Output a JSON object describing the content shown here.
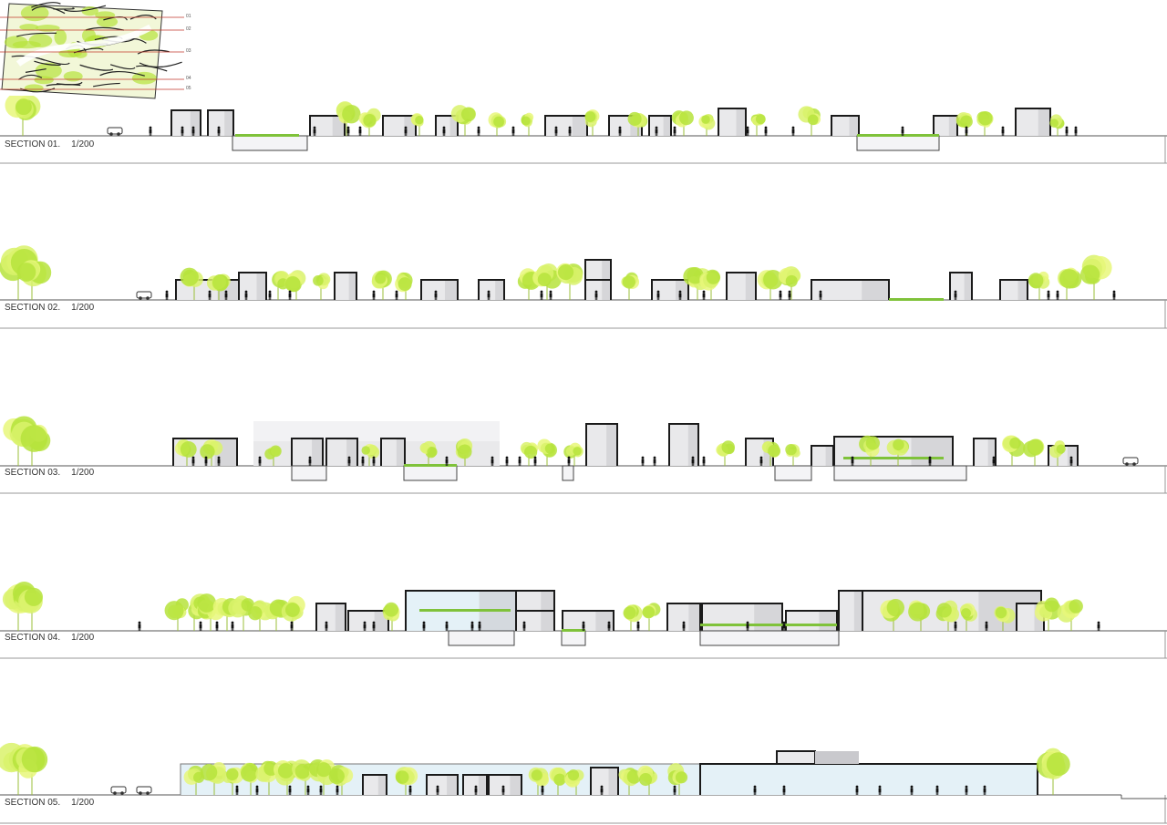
{
  "key_plan": {
    "cut_lines": [
      "01",
      "02",
      "03",
      "04",
      "05"
    ]
  },
  "colors": {
    "tree_light": "#d9f26b",
    "tree_mid": "#b6e33c",
    "tree_bright": "#e8f77a",
    "building_fill": "#e9e9eb",
    "building_shade": "#c9c9cd",
    "wall": "#1a1a1a",
    "ground": "#555555",
    "glass": "#e4f1f7",
    "figure": "#111111",
    "cut_line": "#c0392b"
  },
  "sections": [
    {
      "name": "SECTION 01.",
      "scale": "1/200"
    },
    {
      "name": "SECTION 02.",
      "scale": "1/200"
    },
    {
      "name": "SECTION 03.",
      "scale": "1/200"
    },
    {
      "name": "SECTION 04.",
      "scale": "1/200"
    },
    {
      "name": "SECTION 05.",
      "scale": "1/200"
    }
  ]
}
